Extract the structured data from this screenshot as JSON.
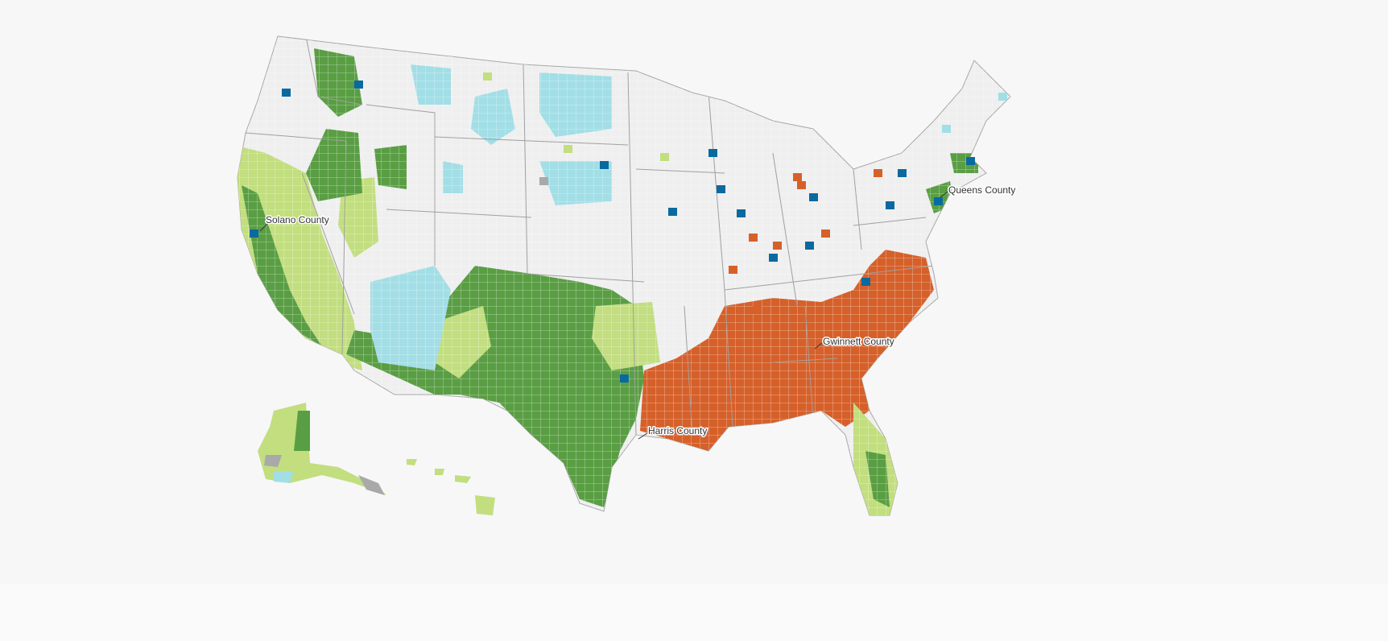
{
  "map": {
    "colors": {
      "background": "#f7f7f7",
      "no_category": "#efefef",
      "no_data": "#a9a9a9",
      "orange": "#d6602a",
      "dark_green": "#5a9e44",
      "light_green": "#c2de7f",
      "light_blue": "#a2dee6",
      "dark_blue": "#0a6aa0",
      "border": "#b5b5b5"
    },
    "labels": [
      {
        "name": "Solano County"
      },
      {
        "name": "Queens County"
      },
      {
        "name": "Gwinnett County"
      },
      {
        "name": "Harris County"
      }
    ]
  }
}
